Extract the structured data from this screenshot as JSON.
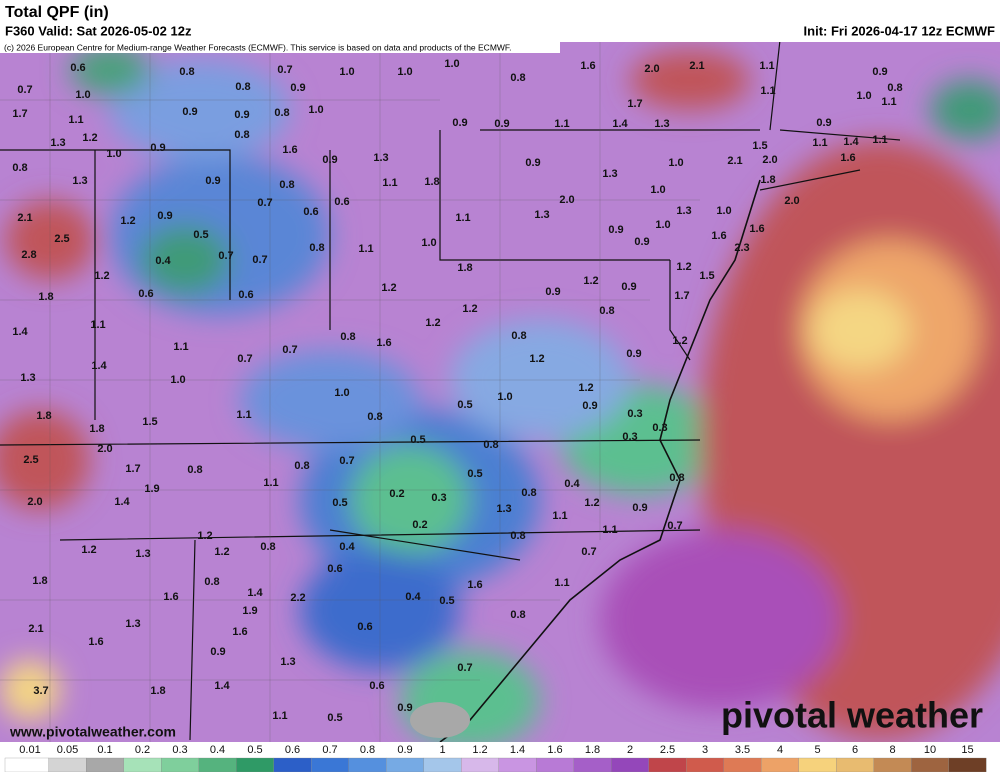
{
  "header": {
    "title": "Total QPF (in)",
    "valid": "F360 Valid: Sat 2026-05-02 12z",
    "init": "Init: Fri 2026-04-17 12z ECMWF",
    "credit": "(c) 2026 European Centre for Medium-range Weather Forecasts (ECMWF). This service is based on data and products of the ECMWF."
  },
  "map": {
    "labels": [
      "0.6",
      "0.8",
      "0.7",
      "1.0",
      "1.0",
      "1.0",
      "0.8",
      "1.6",
      "2.0",
      "2.1",
      "1.1",
      "0.9",
      "0.7",
      "1.0",
      "0.8",
      "0.9",
      "0.9",
      "0.9",
      "0.8",
      "1.0",
      "1.7",
      "1.1",
      "1.0",
      "0.8",
      "1.7",
      "1.1",
      "0.9",
      "0.9",
      "1.1",
      "1.4",
      "1.3",
      "0.9",
      "1.1",
      "1.2",
      "1.3",
      "0.8",
      "0.9",
      "1.0",
      "1.6",
      "0.9",
      "1.3",
      "0.9",
      "1.0",
      "2.1",
      "1.5",
      "1.1",
      "1.4",
      "1.1",
      "0.8",
      "1.3",
      "0.9",
      "0.8",
      "1.1",
      "1.8",
      "1.3",
      "1.0",
      "2.0",
      "1.6",
      "1.8",
      "0.7",
      "0.6",
      "0.6",
      "2.0",
      "1.3",
      "1.0",
      "2.0",
      "2.1",
      "1.2",
      "0.9",
      "1.1",
      "1.3",
      "1.0",
      "0.9",
      "0.5",
      "0.8",
      "1.1",
      "1.0",
      "0.9",
      "1.6",
      "1.6",
      "2.5",
      "2.8",
      "0.4",
      "0.7",
      "0.7",
      "2.3",
      "1.8",
      "1.2",
      "1.2",
      "1.2",
      "1.5",
      "1.8",
      "0.6",
      "0.6",
      "1.2",
      "0.9",
      "0.9",
      "1.7",
      "1.1",
      "1.4",
      "1.2",
      "1.2",
      "0.8",
      "1.1",
      "0.8",
      "1.6",
      "0.8",
      "0.7",
      "0.7",
      "1.2",
      "1.4",
      "1.2",
      "0.9",
      "1.3",
      "1.0",
      "1.0",
      "1.2",
      "1.0",
      "1.1",
      "0.5",
      "0.9",
      "1.5",
      "0.8",
      "1.8",
      "1.8",
      "0.3",
      "0.5",
      "0.8",
      "0.3",
      "0.3",
      "2.0",
      "2.5",
      "0.8",
      "0.7",
      "1.7",
      "0.8",
      "0.5",
      "0.4",
      "0.8",
      "1.9",
      "1.1",
      "0.2",
      "0.3",
      "0.8",
      "0.5",
      "2.0",
      "1.4",
      "1.3",
      "1.2",
      "1.1",
      "0.9",
      "0.2",
      "1.1",
      "0.7",
      "1.2",
      "0.8",
      "1.2",
      "1.3",
      "1.2",
      "0.8",
      "0.4",
      "0.7",
      "0.6",
      "0.8",
      "1.8",
      "1.6",
      "1.1",
      "1.4",
      "2.2",
      "0.4",
      "0.5",
      "1.6",
      "0.8",
      "1.9",
      "1.3",
      "0.6",
      "2.1",
      "1.6",
      "1.6",
      "0.9",
      "1.3",
      "0.7",
      "3.7",
      "1.8",
      "1.4",
      "0.6",
      "1.1",
      "0.5",
      "0.9"
    ],
    "site": "www.pivotalweather.com",
    "logo": "pivotal weather"
  },
  "colorbar": {
    "ticks": [
      0.01,
      0.05,
      0.1,
      0.2,
      0.3,
      0.4,
      0.5,
      0.6,
      0.7,
      0.8,
      0.9,
      1,
      1.2,
      1.4,
      1.6,
      1.8,
      2,
      2.5,
      3,
      3.5,
      4,
      5,
      6,
      8,
      10,
      15
    ],
    "colors": [
      "#ffffff",
      "#d4d4d4",
      "#a8a8a8",
      "#a6e2b8",
      "#7fcf9c",
      "#55b37e",
      "#2f9a66",
      "#2c5fc8",
      "#3a77d6",
      "#5590de",
      "#76aae4",
      "#a4c6ea",
      "#d7b8ea",
      "#c995e2",
      "#b87ad6",
      "#a55fc8",
      "#9447ba",
      "#c0454a",
      "#d05b4c",
      "#de7a55",
      "#eda267",
      "#f6d27c",
      "#e8bb70",
      "#c38a55",
      "#9e6440",
      "#6e3f26"
    ]
  }
}
